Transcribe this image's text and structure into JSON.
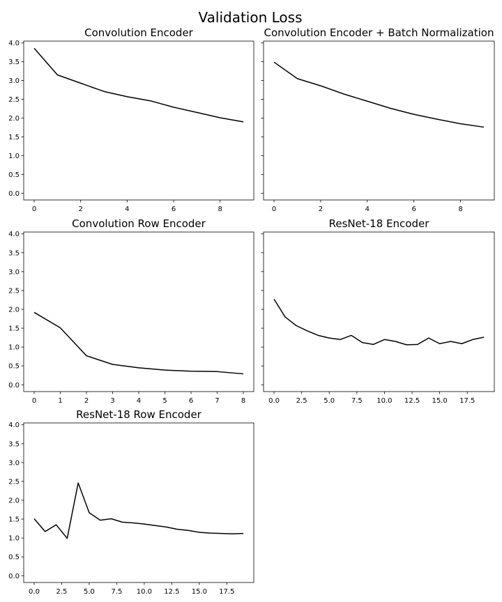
{
  "figure": {
    "title": "Validation Loss"
  },
  "chart_data": [
    {
      "type": "line",
      "title": "Convolution Encoder",
      "x": [
        0,
        1,
        2,
        3,
        4,
        5,
        6,
        7,
        8,
        9
      ],
      "series": [
        {
          "name": "validation loss",
          "values": [
            3.86,
            3.15,
            2.93,
            2.71,
            2.57,
            2.46,
            2.29,
            2.15,
            2.01,
            1.9
          ]
        }
      ],
      "xticks": [
        0,
        2,
        4,
        6,
        8
      ],
      "xticklabels": [
        "0",
        "2",
        "4",
        "6",
        "8"
      ],
      "xlim": [
        -0.45,
        9.45
      ],
      "yticks": [
        0.0,
        0.5,
        1.0,
        1.5,
        2.0,
        2.5,
        3.0,
        3.5,
        4.0
      ],
      "yticklabels": [
        "0.0",
        "0.5",
        "1.0",
        "1.5",
        "2.0",
        "2.5",
        "3.0",
        "3.5",
        "4.0"
      ],
      "ylim": [
        -0.18,
        4.05
      ],
      "show_ytick_labels": true
    },
    {
      "type": "line",
      "title": "Convolution Encoder + Batch Normalization",
      "x": [
        0,
        1,
        2,
        3,
        4,
        5,
        6,
        7,
        8,
        9
      ],
      "series": [
        {
          "name": "validation loss",
          "values": [
            3.49,
            3.05,
            2.86,
            2.64,
            2.45,
            2.26,
            2.1,
            1.97,
            1.85,
            1.76
          ]
        }
      ],
      "xticks": [
        0,
        2,
        4,
        6,
        8
      ],
      "xticklabels": [
        "0",
        "2",
        "4",
        "6",
        "8"
      ],
      "xlim": [
        -0.45,
        9.45
      ],
      "yticks": [
        0.0,
        0.5,
        1.0,
        1.5,
        2.0,
        2.5,
        3.0,
        3.5,
        4.0
      ],
      "yticklabels": [
        "0.0",
        "0.5",
        "1.0",
        "1.5",
        "2.0",
        "2.5",
        "3.0",
        "3.5",
        "4.0"
      ],
      "ylim": [
        -0.18,
        4.05
      ],
      "show_ytick_labels": false
    },
    {
      "type": "line",
      "title": "Convolution Row Encoder",
      "x": [
        0,
        1,
        2,
        3,
        4,
        5,
        6,
        7,
        8
      ],
      "series": [
        {
          "name": "validation loss",
          "values": [
            1.92,
            1.51,
            0.77,
            0.54,
            0.45,
            0.39,
            0.36,
            0.35,
            0.29
          ]
        }
      ],
      "xticks": [
        0,
        1,
        2,
        3,
        4,
        5,
        6,
        7,
        8
      ],
      "xticklabels": [
        "0",
        "1",
        "2",
        "3",
        "4",
        "5",
        "6",
        "7",
        "8"
      ],
      "xlim": [
        -0.4,
        8.4
      ],
      "yticks": [
        0.0,
        0.5,
        1.0,
        1.5,
        2.0,
        2.5,
        3.0,
        3.5,
        4.0
      ],
      "yticklabels": [
        "0.0",
        "0.5",
        "1.0",
        "1.5",
        "2.0",
        "2.5",
        "3.0",
        "3.5",
        "4.0"
      ],
      "ylim": [
        -0.18,
        4.05
      ],
      "show_ytick_labels": true
    },
    {
      "type": "line",
      "title": "ResNet-18 Encoder",
      "x": [
        0,
        1,
        2,
        3,
        4,
        5,
        6,
        7,
        8,
        9,
        10,
        11,
        12,
        13,
        14,
        15,
        16,
        17,
        18,
        19
      ],
      "series": [
        {
          "name": "validation loss",
          "values": [
            2.27,
            1.8,
            1.57,
            1.43,
            1.31,
            1.24,
            1.2,
            1.31,
            1.12,
            1.07,
            1.2,
            1.15,
            1.06,
            1.07,
            1.24,
            1.09,
            1.15,
            1.09,
            1.2,
            1.26
          ]
        }
      ],
      "xticks": [
        0,
        2.5,
        5,
        7.5,
        10,
        12.5,
        15,
        17.5
      ],
      "xticklabels": [
        "0.0",
        "2.5",
        "5.0",
        "7.5",
        "10.0",
        "12.5",
        "15.0",
        "17.5"
      ],
      "xlim": [
        -0.95,
        19.95
      ],
      "yticks": [
        0.0,
        0.5,
        1.0,
        1.5,
        2.0,
        2.5,
        3.0,
        3.5,
        4.0
      ],
      "yticklabels": [
        "0.0",
        "0.5",
        "1.0",
        "1.5",
        "2.0",
        "2.5",
        "3.0",
        "3.5",
        "4.0"
      ],
      "ylim": [
        -0.18,
        4.05
      ],
      "show_ytick_labels": false
    },
    {
      "type": "line",
      "title": "ResNet-18 Row Encoder",
      "x": [
        0,
        1,
        2,
        3,
        4,
        5,
        6,
        7,
        8,
        9,
        10,
        11,
        12,
        13,
        14,
        15,
        16,
        17,
        18,
        19
      ],
      "series": [
        {
          "name": "validation loss",
          "values": [
            1.51,
            1.17,
            1.35,
            0.99,
            2.46,
            1.67,
            1.47,
            1.51,
            1.42,
            1.4,
            1.37,
            1.33,
            1.29,
            1.23,
            1.2,
            1.15,
            1.13,
            1.12,
            1.11,
            1.12
          ]
        }
      ],
      "xticks": [
        0,
        2.5,
        5,
        7.5,
        10,
        12.5,
        15,
        17.5
      ],
      "xticklabels": [
        "0.0",
        "2.5",
        "5.0",
        "7.5",
        "10.0",
        "12.5",
        "15.0",
        "17.5"
      ],
      "xlim": [
        -0.95,
        19.95
      ],
      "yticks": [
        0.0,
        0.5,
        1.0,
        1.5,
        2.0,
        2.5,
        3.0,
        3.5,
        4.0
      ],
      "yticklabels": [
        "0.0",
        "0.5",
        "1.0",
        "1.5",
        "2.0",
        "2.5",
        "3.0",
        "3.5",
        "4.0"
      ],
      "ylim": [
        -0.18,
        4.05
      ],
      "show_ytick_labels": true
    }
  ]
}
